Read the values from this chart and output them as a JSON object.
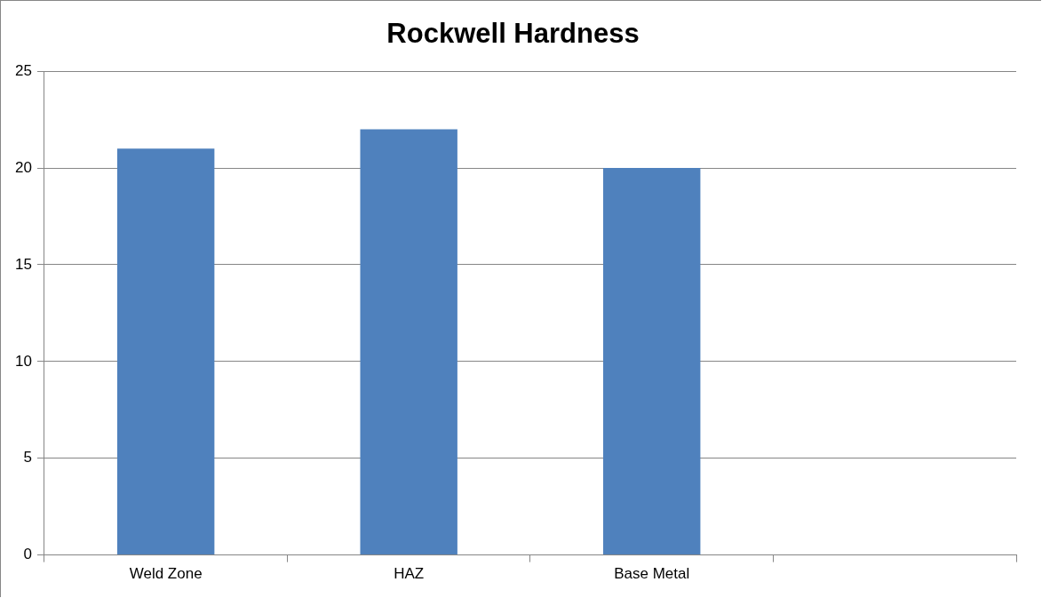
{
  "chart_data": {
    "type": "bar",
    "title": "Rockwell Hardness",
    "categories": [
      "Weld Zone",
      "HAZ",
      "Base Metal",
      null
    ],
    "values": [
      21,
      22,
      20,
      null
    ],
    "color": "#4f81bd",
    "ylim": [
      0,
      25
    ],
    "yticks": [
      0,
      5,
      10,
      15,
      20,
      25
    ],
    "grid": "y",
    "legend": false
  }
}
